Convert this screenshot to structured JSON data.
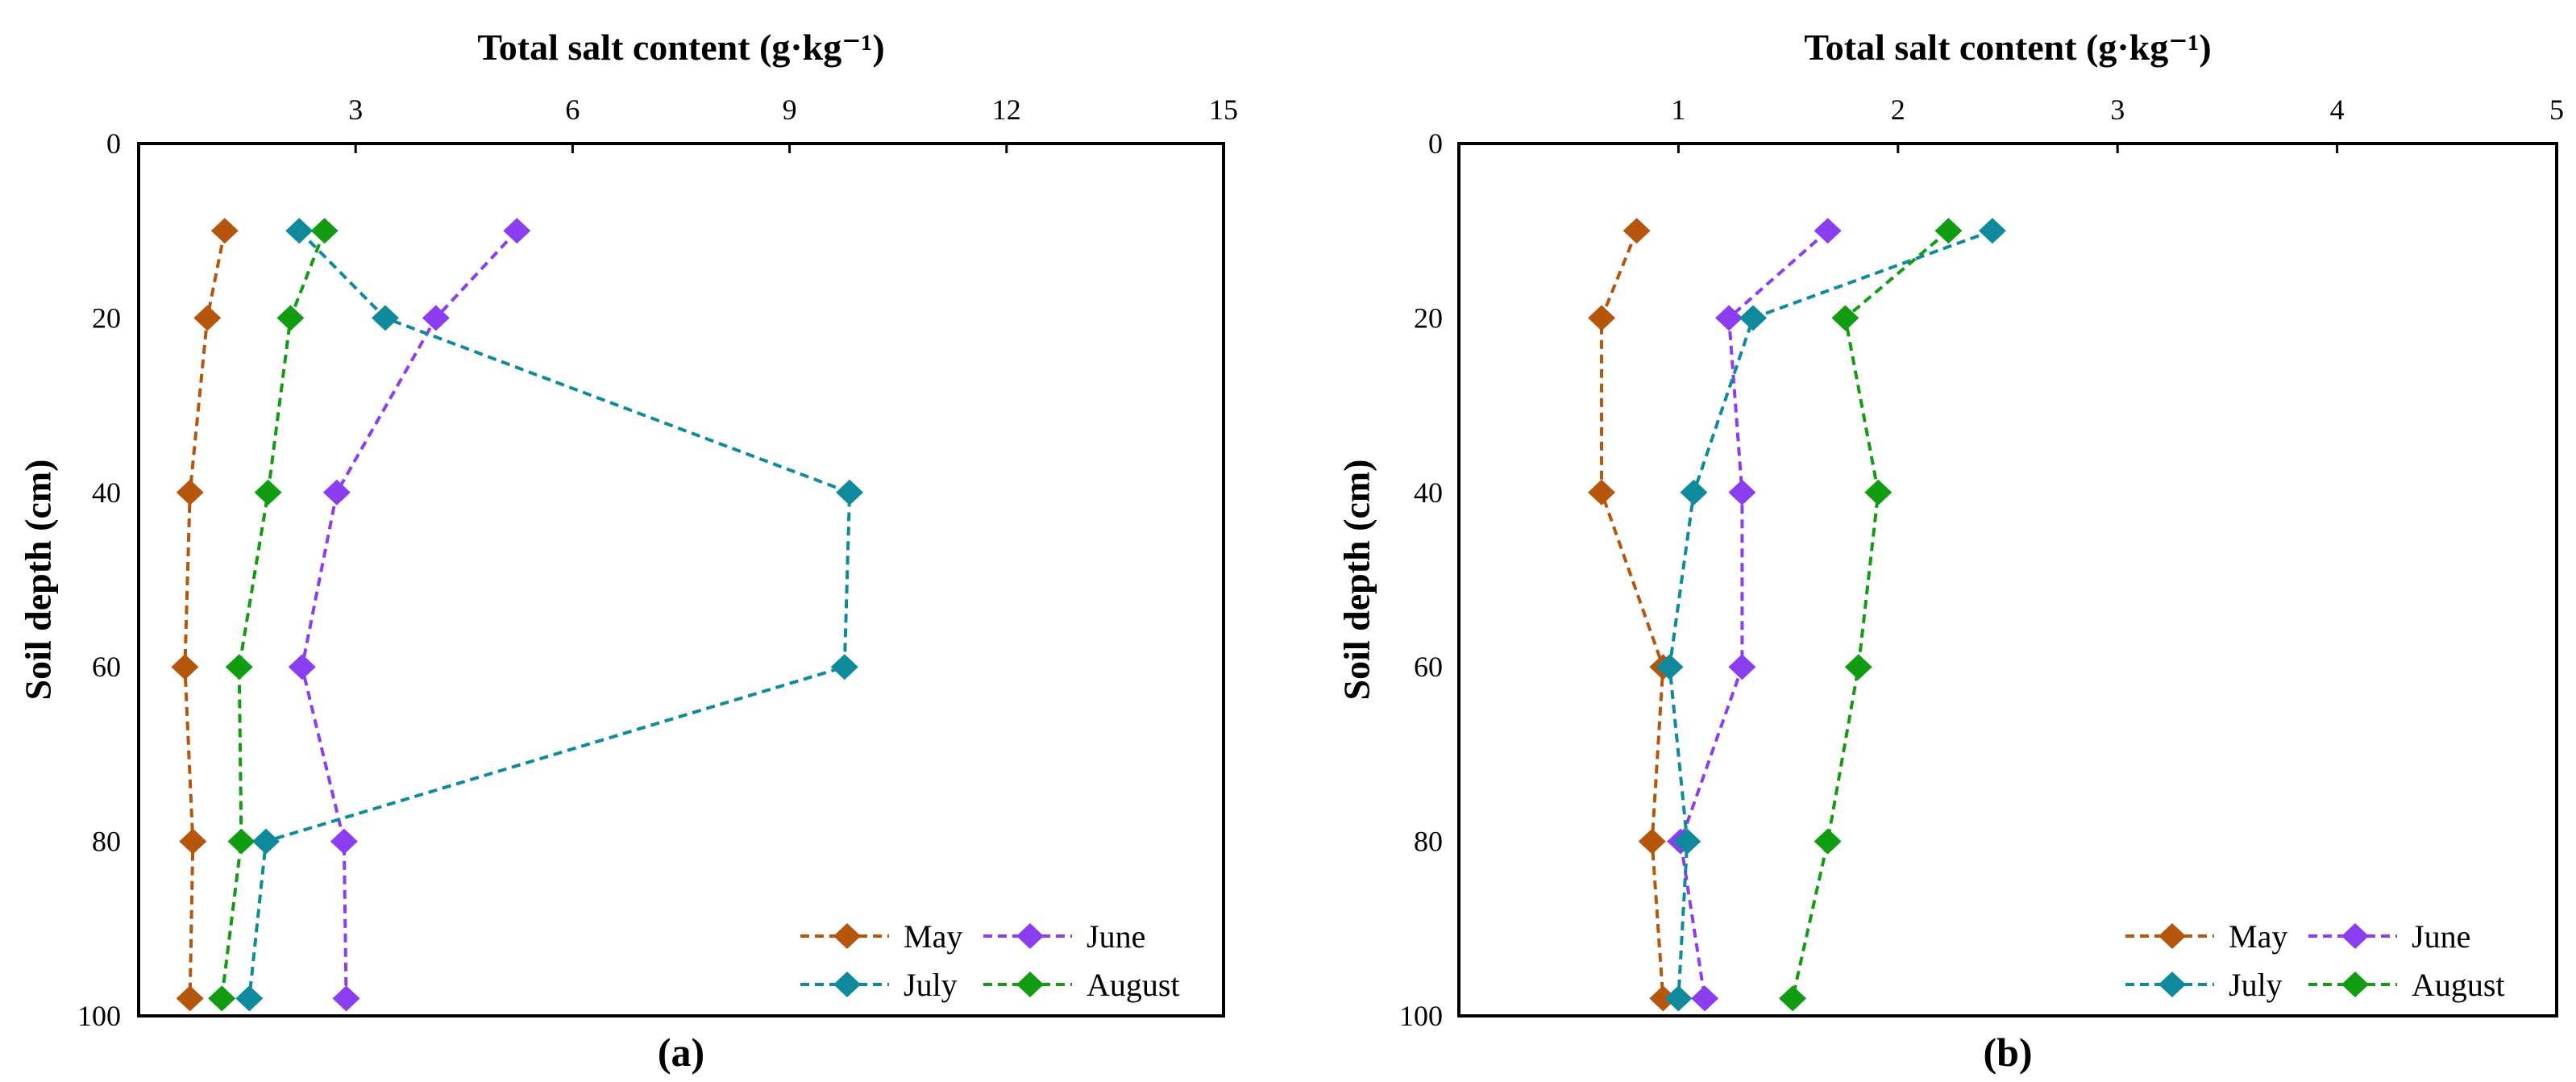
{
  "chart_data": [
    {
      "type": "line",
      "panel_label": "(a)",
      "title": "Total salt content (g·kg⁻¹)",
      "xlabel": "Total salt content (g·kg⁻¹)",
      "ylabel": "Soil depth (cm)",
      "xlim": [
        0,
        15
      ],
      "ylim": [
        0,
        100
      ],
      "y_inverted": true,
      "x_axis_position": "top",
      "xticks": [
        3,
        6,
        9,
        12,
        15
      ],
      "xtick_labels": [
        "3",
        "6",
        "9",
        "12",
        "15"
      ],
      "yticks": [
        0,
        20,
        40,
        60,
        80,
        100
      ],
      "ytick_labels": [
        "0",
        "20",
        "40",
        "60",
        "80",
        "100"
      ],
      "grid": false,
      "legend_position": "bottom-right",
      "depths": [
        10,
        20,
        40,
        60,
        80,
        98
      ],
      "series": [
        {
          "name": "May",
          "color": "#b5560c",
          "values": [
            1.19,
            0.95,
            0.71,
            0.64,
            0.75,
            0.71
          ]
        },
        {
          "name": "June",
          "color": "#8a3ef0",
          "values": [
            5.23,
            4.11,
            2.74,
            2.26,
            2.84,
            2.87
          ]
        },
        {
          "name": "July",
          "color": "#0e8a9c",
          "values": [
            2.22,
            3.41,
            9.83,
            9.76,
            1.76,
            1.53
          ]
        },
        {
          "name": "August",
          "color": "#129c12",
          "values": [
            2.57,
            2.1,
            1.79,
            1.39,
            1.42,
            1.15
          ]
        }
      ]
    },
    {
      "type": "line",
      "panel_label": "(b)",
      "title": "Total salt content (g·kg⁻¹)",
      "xlabel": "Total salt content (g·kg⁻¹)",
      "ylabel": "Soil depth (cm)",
      "xlim": [
        0,
        5
      ],
      "ylim": [
        0,
        100
      ],
      "y_inverted": true,
      "x_axis_position": "top",
      "xticks": [
        1,
        2,
        3,
        4,
        5
      ],
      "xtick_labels": [
        "1",
        "2",
        "3",
        "4",
        "5"
      ],
      "yticks": [
        0,
        20,
        40,
        60,
        80,
        100
      ],
      "ytick_labels": [
        "0",
        "20",
        "40",
        "60",
        "80",
        "100"
      ],
      "grid": false,
      "legend_position": "bottom-right",
      "depths": [
        10,
        20,
        40,
        60,
        80,
        98
      ],
      "series": [
        {
          "name": "May",
          "color": "#b5560c",
          "values": [
            0.81,
            0.65,
            0.65,
            0.93,
            0.88,
            0.93
          ]
        },
        {
          "name": "June",
          "color": "#8a3ef0",
          "values": [
            1.68,
            1.23,
            1.29,
            1.29,
            1.01,
            1.12
          ]
        },
        {
          "name": "July",
          "color": "#0e8a9c",
          "values": [
            2.43,
            1.34,
            1.07,
            0.96,
            1.04,
            1.0
          ]
        },
        {
          "name": "August",
          "color": "#129c12",
          "values": [
            2.23,
            1.76,
            1.91,
            1.82,
            1.68,
            1.52
          ]
        }
      ]
    }
  ]
}
